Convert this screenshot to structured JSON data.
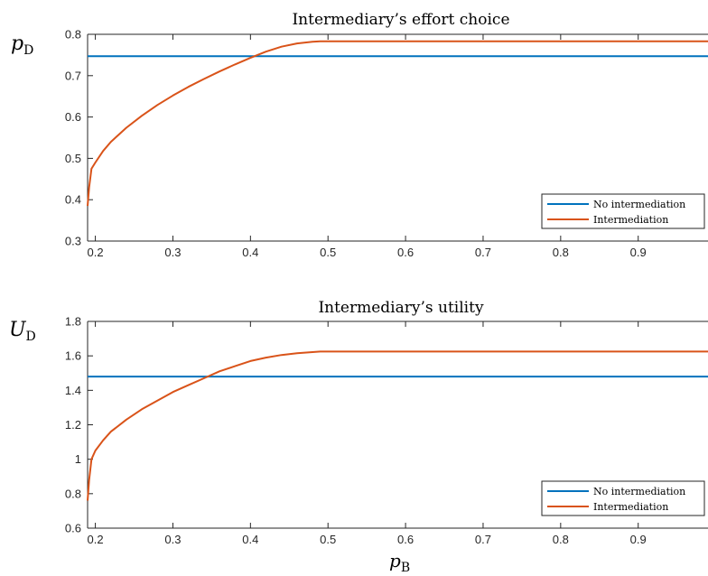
{
  "colors": {
    "no_intermediation": "#0072BD",
    "intermediation": "#D95319",
    "axis": "#262626"
  },
  "chart_data": [
    {
      "type": "line",
      "title": "Intermediary’s effort choice",
      "ylabel": {
        "base": "p",
        "sub": "D"
      },
      "xlabel": {
        "base": "",
        "sub": ""
      },
      "xlim": [
        0.19,
        0.99
      ],
      "ylim": [
        0.3,
        0.8
      ],
      "xticks": [
        0.2,
        0.3,
        0.4,
        0.5,
        0.6,
        0.7,
        0.8,
        0.9
      ],
      "xtick_labels": [
        "0.2",
        "0.3",
        "0.4",
        "0.5",
        "0.6",
        "0.7",
        "0.8",
        "0.9"
      ],
      "yticks": [
        0.3,
        0.4,
        0.5,
        0.6,
        0.7,
        0.8
      ],
      "ytick_labels": [
        "0.3",
        "0.4",
        "0.5",
        "0.6",
        "0.7",
        "0.8"
      ],
      "grid": false,
      "legend": "bottom-right",
      "series": [
        {
          "name": "No intermediation",
          "color_key": "no_intermediation",
          "x": [
            0.19,
            0.99
          ],
          "y": [
            0.747,
            0.747
          ]
        },
        {
          "name": "Intermediation",
          "color_key": "intermediation",
          "x": [
            0.19,
            0.192,
            0.195,
            0.2,
            0.21,
            0.22,
            0.24,
            0.26,
            0.28,
            0.3,
            0.32,
            0.34,
            0.36,
            0.38,
            0.4,
            0.42,
            0.44,
            0.46,
            0.48,
            0.49,
            0.99
          ],
          "y": [
            0.385,
            0.43,
            0.475,
            0.49,
            0.518,
            0.54,
            0.574,
            0.603,
            0.629,
            0.652,
            0.673,
            0.692,
            0.71,
            0.727,
            0.743,
            0.758,
            0.77,
            0.778,
            0.782,
            0.783,
            0.783
          ]
        }
      ]
    },
    {
      "type": "line",
      "title": "Intermediary’s utility",
      "ylabel": {
        "base": "U",
        "sub": "D"
      },
      "xlabel": {
        "base": "p",
        "sub": "B"
      },
      "xlim": [
        0.19,
        0.99
      ],
      "ylim": [
        0.6,
        1.8
      ],
      "xticks": [
        0.2,
        0.3,
        0.4,
        0.5,
        0.6,
        0.7,
        0.8,
        0.9
      ],
      "xtick_labels": [
        "0.2",
        "0.3",
        "0.4",
        "0.5",
        "0.6",
        "0.7",
        "0.8",
        "0.9"
      ],
      "yticks": [
        0.6,
        0.8,
        1.0,
        1.2,
        1.4,
        1.6,
        1.8
      ],
      "ytick_labels": [
        "0.6",
        "0.8",
        "1",
        "1.2",
        "1.4",
        "1.6",
        "1.8"
      ],
      "grid": false,
      "legend": "bottom-right",
      "series": [
        {
          "name": "No intermediation",
          "color_key": "no_intermediation",
          "x": [
            0.19,
            0.99
          ],
          "y": [
            1.48,
            1.48
          ]
        },
        {
          "name": "Intermediation",
          "color_key": "intermediation",
          "x": [
            0.19,
            0.192,
            0.195,
            0.2,
            0.21,
            0.22,
            0.24,
            0.26,
            0.28,
            0.3,
            0.32,
            0.34,
            0.36,
            0.38,
            0.4,
            0.42,
            0.44,
            0.46,
            0.48,
            0.49,
            0.99
          ],
          "y": [
            0.76,
            0.88,
            1.0,
            1.05,
            1.11,
            1.16,
            1.23,
            1.29,
            1.34,
            1.39,
            1.43,
            1.47,
            1.51,
            1.54,
            1.57,
            1.59,
            1.605,
            1.615,
            1.622,
            1.625,
            1.625
          ]
        }
      ]
    }
  ]
}
